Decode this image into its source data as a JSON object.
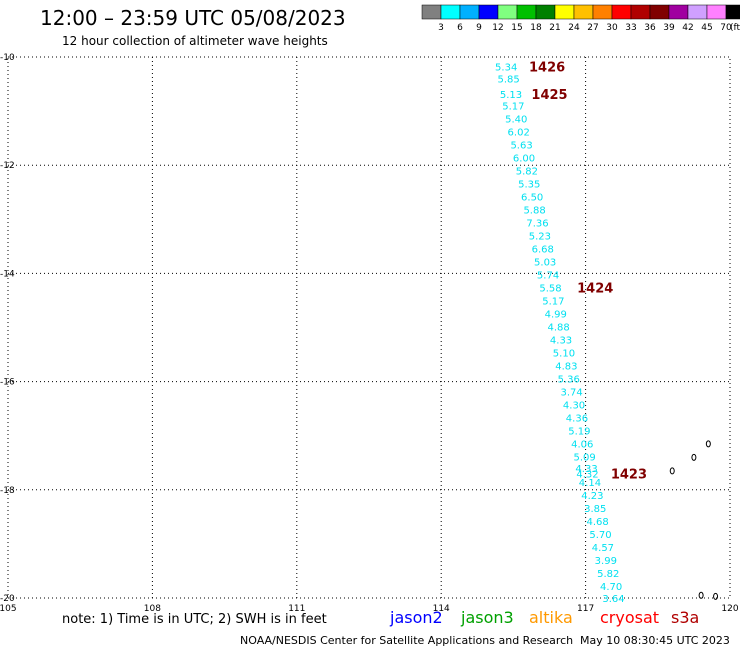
{
  "header": {
    "title": "12:00 – 23:59 UTC 05/08/2023",
    "subtitle": "12 hour collection of altimeter wave heights"
  },
  "colorbar": {
    "labels": [
      "3",
      "6",
      "9",
      "12",
      "15",
      "18",
      "21",
      "24",
      "27",
      "30",
      "33",
      "36",
      "39",
      "42",
      "45",
      "70"
    ],
    "unit": "(ft)",
    "colors": [
      "#808080",
      "#00ffff",
      "#00b0ff",
      "#0000ff",
      "#80ff80",
      "#00c000",
      "#008000",
      "#ffff00",
      "#ffc000",
      "#ff8000",
      "#ff0000",
      "#b00000",
      "#800000",
      "#a000a0",
      "#d0a0ff",
      "#ff80ff",
      "#000000"
    ]
  },
  "chart_data": {
    "type": "scatter",
    "title": "12:00 – 23:59 UTC 05/08/2023",
    "subtitle": "12 hour collection of altimeter wave heights",
    "xlim": [
      105,
      120
    ],
    "ylim": [
      -20,
      -10
    ],
    "x_ticks": [
      105,
      108,
      111,
      114,
      117,
      120
    ],
    "y_ticks": [
      -10,
      -12,
      -14,
      -16,
      -18,
      -20
    ],
    "x_tick_labels": [
      "105",
      "108",
      "111",
      "114",
      "117",
      "120"
    ],
    "y_tick_labels": [
      "-10",
      "-12",
      "-14",
      "-16",
      "-18",
      "-20"
    ],
    "grid": true,
    "series": [
      {
        "name": "cryosat",
        "color": "#00e0f0",
        "points": [
          {
            "x": 115.35,
            "y": -10.18,
            "label": "5.34"
          },
          {
            "x": 115.4,
            "y": -10.4,
            "label": "5.85"
          },
          {
            "x": 115.45,
            "y": -10.68,
            "label": "5.13"
          },
          {
            "x": 115.5,
            "y": -10.9,
            "label": "5.17"
          },
          {
            "x": 115.56,
            "y": -11.14,
            "label": "5.40"
          },
          {
            "x": 115.61,
            "y": -11.38,
            "label": "6.02"
          },
          {
            "x": 115.67,
            "y": -11.62,
            "label": "5.63"
          },
          {
            "x": 115.72,
            "y": -11.86,
            "label": "6.00"
          },
          {
            "x": 115.78,
            "y": -12.1,
            "label": "5.82"
          },
          {
            "x": 115.83,
            "y": -12.34,
            "label": "5.35"
          },
          {
            "x": 115.89,
            "y": -12.58,
            "label": "6.50"
          },
          {
            "x": 115.94,
            "y": -12.82,
            "label": "5.88"
          },
          {
            "x": 116.0,
            "y": -13.06,
            "label": "7.36"
          },
          {
            "x": 116.05,
            "y": -13.3,
            "label": "5.23"
          },
          {
            "x": 116.11,
            "y": -13.54,
            "label": "6.68"
          },
          {
            "x": 116.16,
            "y": -13.78,
            "label": "5.03"
          },
          {
            "x": 116.22,
            "y": -14.02,
            "label": "5.74"
          },
          {
            "x": 116.27,
            "y": -14.26,
            "label": "5.58"
          },
          {
            "x": 116.33,
            "y": -14.5,
            "label": "5.17"
          },
          {
            "x": 116.38,
            "y": -14.74,
            "label": "4.99"
          },
          {
            "x": 116.44,
            "y": -14.98,
            "label": "4.88"
          },
          {
            "x": 116.49,
            "y": -15.22,
            "label": "4.33"
          },
          {
            "x": 116.55,
            "y": -15.46,
            "label": "5.10"
          },
          {
            "x": 116.6,
            "y": -15.7,
            "label": "4.83"
          },
          {
            "x": 116.65,
            "y": -15.94,
            "label": "5.36"
          },
          {
            "x": 116.71,
            "y": -16.18,
            "label": "3.74"
          },
          {
            "x": 116.76,
            "y": -16.42,
            "label": "4.30"
          },
          {
            "x": 116.82,
            "y": -16.66,
            "label": "4.36"
          },
          {
            "x": 116.87,
            "y": -16.9,
            "label": "5.19"
          },
          {
            "x": 116.93,
            "y": -17.14,
            "label": "4.06"
          },
          {
            "x": 116.98,
            "y": -17.38,
            "label": "5.09"
          },
          {
            "x": 117.02,
            "y": -17.6,
            "label": "4.33"
          },
          {
            "x": 117.04,
            "y": -17.7,
            "label": "4.32"
          },
          {
            "x": 117.09,
            "y": -17.86,
            "label": "4.14"
          },
          {
            "x": 117.14,
            "y": -18.1,
            "label": "4.23"
          },
          {
            "x": 117.2,
            "y": -18.34,
            "label": "3.85"
          },
          {
            "x": 117.25,
            "y": -18.58,
            "label": "4.68"
          },
          {
            "x": 117.31,
            "y": -18.82,
            "label": "5.70"
          },
          {
            "x": 117.36,
            "y": -19.06,
            "label": "4.57"
          },
          {
            "x": 117.42,
            "y": -19.3,
            "label": "3.99"
          },
          {
            "x": 117.47,
            "y": -19.54,
            "label": "5.82"
          },
          {
            "x": 117.53,
            "y": -19.78,
            "label": "4.70"
          },
          {
            "x": 117.58,
            "y": -20.0,
            "label": "3.64"
          }
        ]
      }
    ],
    "time_labels": [
      {
        "x": 116.2,
        "y": -10.18,
        "label": "1426"
      },
      {
        "x": 116.25,
        "y": -10.68,
        "label": "1425"
      },
      {
        "x": 117.2,
        "y": -14.26,
        "label": "1424"
      },
      {
        "x": 117.9,
        "y": -17.7,
        "label": "1423"
      }
    ],
    "time_label_color": "#800000",
    "islands": [
      {
        "x": 119.55,
        "y": -17.15
      },
      {
        "x": 119.25,
        "y": -17.4
      },
      {
        "x": 118.8,
        "y": -17.65
      },
      {
        "x": 119.4,
        "y": -19.95
      },
      {
        "x": 119.7,
        "y": -19.97
      }
    ]
  },
  "footer": {
    "note": "note:  1) Time is in UTC;  2) SWH is in feet",
    "satellites": [
      {
        "name": "jason2",
        "color": "#0000ff"
      },
      {
        "name": "jason3",
        "color": "#00a000"
      },
      {
        "name": "altika",
        "color": "#ff9900"
      },
      {
        "name": "cryosat",
        "color": "#ff0000"
      },
      {
        "name": "s3a",
        "color": "#b00000"
      }
    ],
    "credit": "NOAA/NESDIS Center for Satellite Applications and Research",
    "timestamp": "May 10 08:30:45 UTC 2023"
  }
}
